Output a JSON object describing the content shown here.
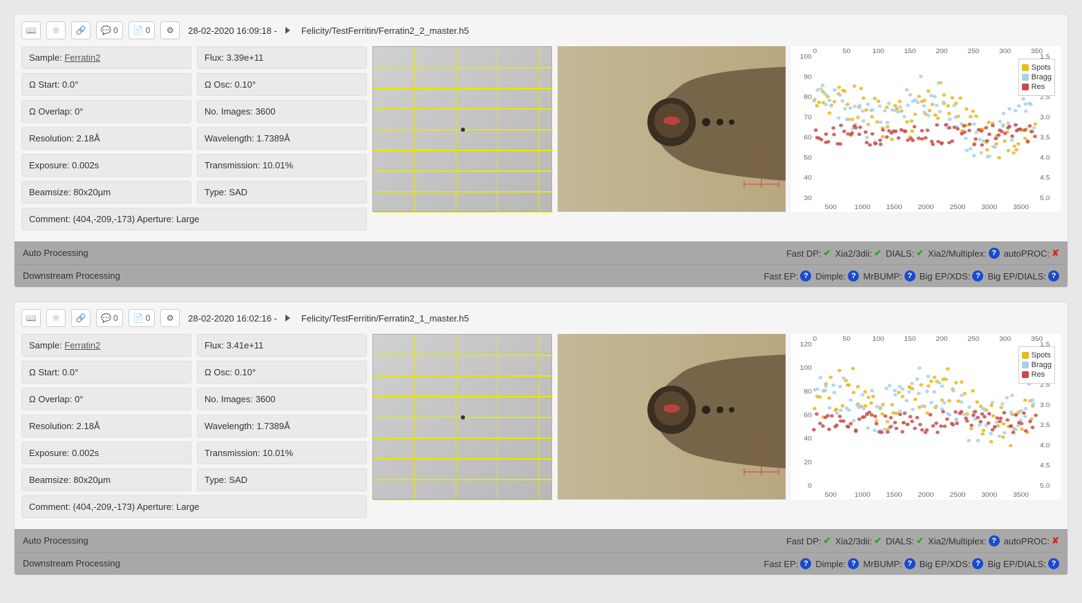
{
  "records": [
    {
      "timestamp": "28-02-2020 16:09:18 -",
      "path": "Felicity/TestFerritin/Ferratin2_2_master.h5",
      "comment_count": "0",
      "file_count": "0",
      "sample_label": "Sample:",
      "sample_value": "Ferratin2",
      "params": [
        [
          "Flux: 3.39e+11"
        ],
        [
          "Ω Start: 0.0°",
          "Ω Osc: 0.10°"
        ],
        [
          "Ω Overlap: 0°",
          "No. Images: 3600"
        ],
        [
          "Resolution: 2.18Å",
          "Wavelength: 1.7389Å"
        ],
        [
          "Exposure: 0.002s",
          "Transmission: 10.01%"
        ],
        [
          "Beamsize: 80x20µm",
          "Type: SAD"
        ]
      ],
      "comment": "Comment: (404,-209,-173) Aperture: Large",
      "chart": {
        "x_ticks_top": [
          "0",
          "50",
          "100",
          "150",
          "200",
          "250",
          "300",
          "350"
        ],
        "x_ticks_bottom": [
          "500",
          "1000",
          "1500",
          "2000",
          "2500",
          "3000",
          "3500"
        ],
        "y_left": [
          "100",
          "90",
          "80",
          "70",
          "60",
          "50",
          "40",
          "30"
        ],
        "y_right": [
          "1.5",
          "2.0",
          "2.5",
          "3.0",
          "3.5",
          "4.0",
          "4.5",
          "5.0"
        ],
        "y_left_min": 30,
        "y_left_max": 100,
        "legend": [
          {
            "label": "Spots",
            "color": "#e8b923"
          },
          {
            "label": "Bragg",
            "color": "#a8d0e6"
          },
          {
            "label": "Res",
            "color": "#c94c4c"
          }
        ]
      },
      "auto_label": "Auto Processing",
      "auto_status": [
        {
          "label": "Fast DP:",
          "icon": "check"
        },
        {
          "label": "Xia2/3dii:",
          "icon": "check"
        },
        {
          "label": "DIALS:",
          "icon": "check"
        },
        {
          "label": "Xia2/Multiplex:",
          "icon": "question"
        },
        {
          "label": "autoPROC:",
          "icon": "cross"
        }
      ],
      "down_label": "Downstream Processing",
      "down_status": [
        {
          "label": "Fast EP:",
          "icon": "question"
        },
        {
          "label": "Dimple:",
          "icon": "question"
        },
        {
          "label": "MrBUMP:",
          "icon": "question"
        },
        {
          "label": "Big EP/XDS:",
          "icon": "question"
        },
        {
          "label": "Big EP/DIALS:",
          "icon": "question"
        }
      ]
    },
    {
      "timestamp": "28-02-2020 16:02:16 -",
      "path": "Felicity/TestFerritin/Ferratin2_1_master.h5",
      "comment_count": "0",
      "file_count": "0",
      "sample_label": "Sample:",
      "sample_value": "Ferratin2",
      "params": [
        [
          "Flux: 3.41e+11"
        ],
        [
          "Ω Start: 0.0°",
          "Ω Osc: 0.10°"
        ],
        [
          "Ω Overlap: 0°",
          "No. Images: 3600"
        ],
        [
          "Resolution: 2.18Å",
          "Wavelength: 1.7389Å"
        ],
        [
          "Exposure: 0.002s",
          "Transmission: 10.01%"
        ],
        [
          "Beamsize: 80x20µm",
          "Type: SAD"
        ]
      ],
      "comment": "Comment: (404,-209,-173) Aperture: Large",
      "chart": {
        "x_ticks_top": [
          "0",
          "50",
          "100",
          "150",
          "200",
          "250",
          "300",
          "350"
        ],
        "x_ticks_bottom": [
          "500",
          "1000",
          "1500",
          "2000",
          "2500",
          "3000",
          "3500"
        ],
        "y_left": [
          "120",
          "100",
          "80",
          "60",
          "40",
          "20",
          "0"
        ],
        "y_right": [
          "1.5",
          "2.0",
          "2.5",
          "3.0",
          "3.5",
          "4.0",
          "4.5",
          "5.0"
        ],
        "y_left_min": 0,
        "y_left_max": 120,
        "legend": [
          {
            "label": "Spots",
            "color": "#e8b923"
          },
          {
            "label": "Bragg",
            "color": "#a8d0e6"
          },
          {
            "label": "Res",
            "color": "#c94c4c"
          }
        ]
      },
      "auto_label": "Auto Processing",
      "auto_status": [
        {
          "label": "Fast DP:",
          "icon": "check"
        },
        {
          "label": "Xia2/3dii:",
          "icon": "check"
        },
        {
          "label": "DIALS:",
          "icon": "check"
        },
        {
          "label": "Xia2/Multiplex:",
          "icon": "question"
        },
        {
          "label": "autoPROC:",
          "icon": "cross"
        }
      ],
      "down_label": "Downstream Processing",
      "down_status": [
        {
          "label": "Fast EP:",
          "icon": "question"
        },
        {
          "label": "Dimple:",
          "icon": "question"
        },
        {
          "label": "MrBUMP:",
          "icon": "question"
        },
        {
          "label": "Big EP/XDS:",
          "icon": "question"
        },
        {
          "label": "Big EP/DIALS:",
          "icon": "question"
        }
      ]
    }
  ]
}
